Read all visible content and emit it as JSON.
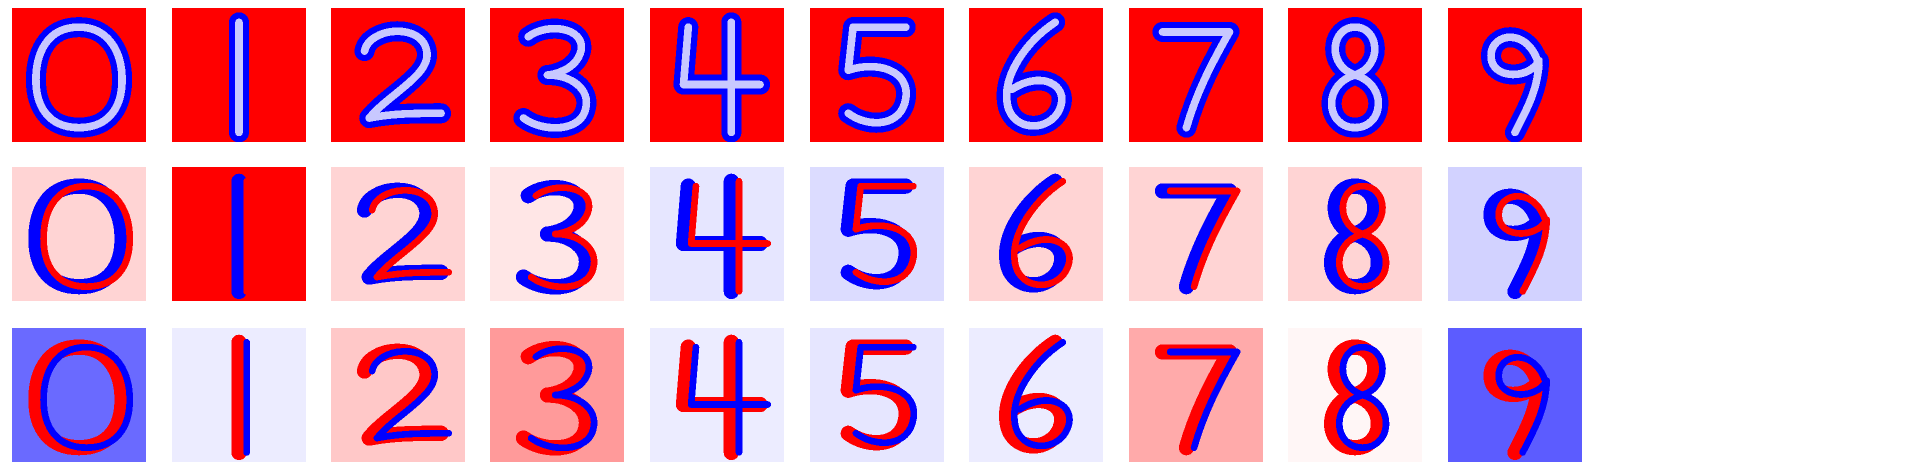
{
  "figure": {
    "colormap": {
      "negative": "#0000ff",
      "zero": "#ffffff",
      "positive": "#ff0000"
    },
    "columns": [
      "0",
      "1",
      "2",
      "3",
      "4",
      "5",
      "6",
      "7",
      "8",
      "9"
    ],
    "rows": [
      {
        "background": "#ff0000",
        "stroke_colors": [
          "#0000ff",
          "#c8c8ff"
        ]
      },
      {
        "background": "#ffd4d4",
        "stroke_colors": [
          "#0000ff",
          "#ff0000"
        ]
      },
      {
        "background": "#ececff",
        "stroke_colors": [
          "#ff0000",
          "#0000ff"
        ]
      }
    ],
    "row_column_backgrounds": {
      "1": {
        "1": "#ff0000",
        "3": "#ffe6e6",
        "4": "#e6e6ff",
        "5": "#dcdcff",
        "6": "#ffd4d4",
        "9": "#d2d2ff"
      },
      "2": {
        "0": "#6a6aff",
        "1": "#ececff",
        "2": "#ffc8c8",
        "3": "#ff9a9a",
        "5": "#e6e6ff",
        "7": "#ffaaaa",
        "8": "#fff6f6",
        "9": "#5c5cff"
      }
    }
  }
}
